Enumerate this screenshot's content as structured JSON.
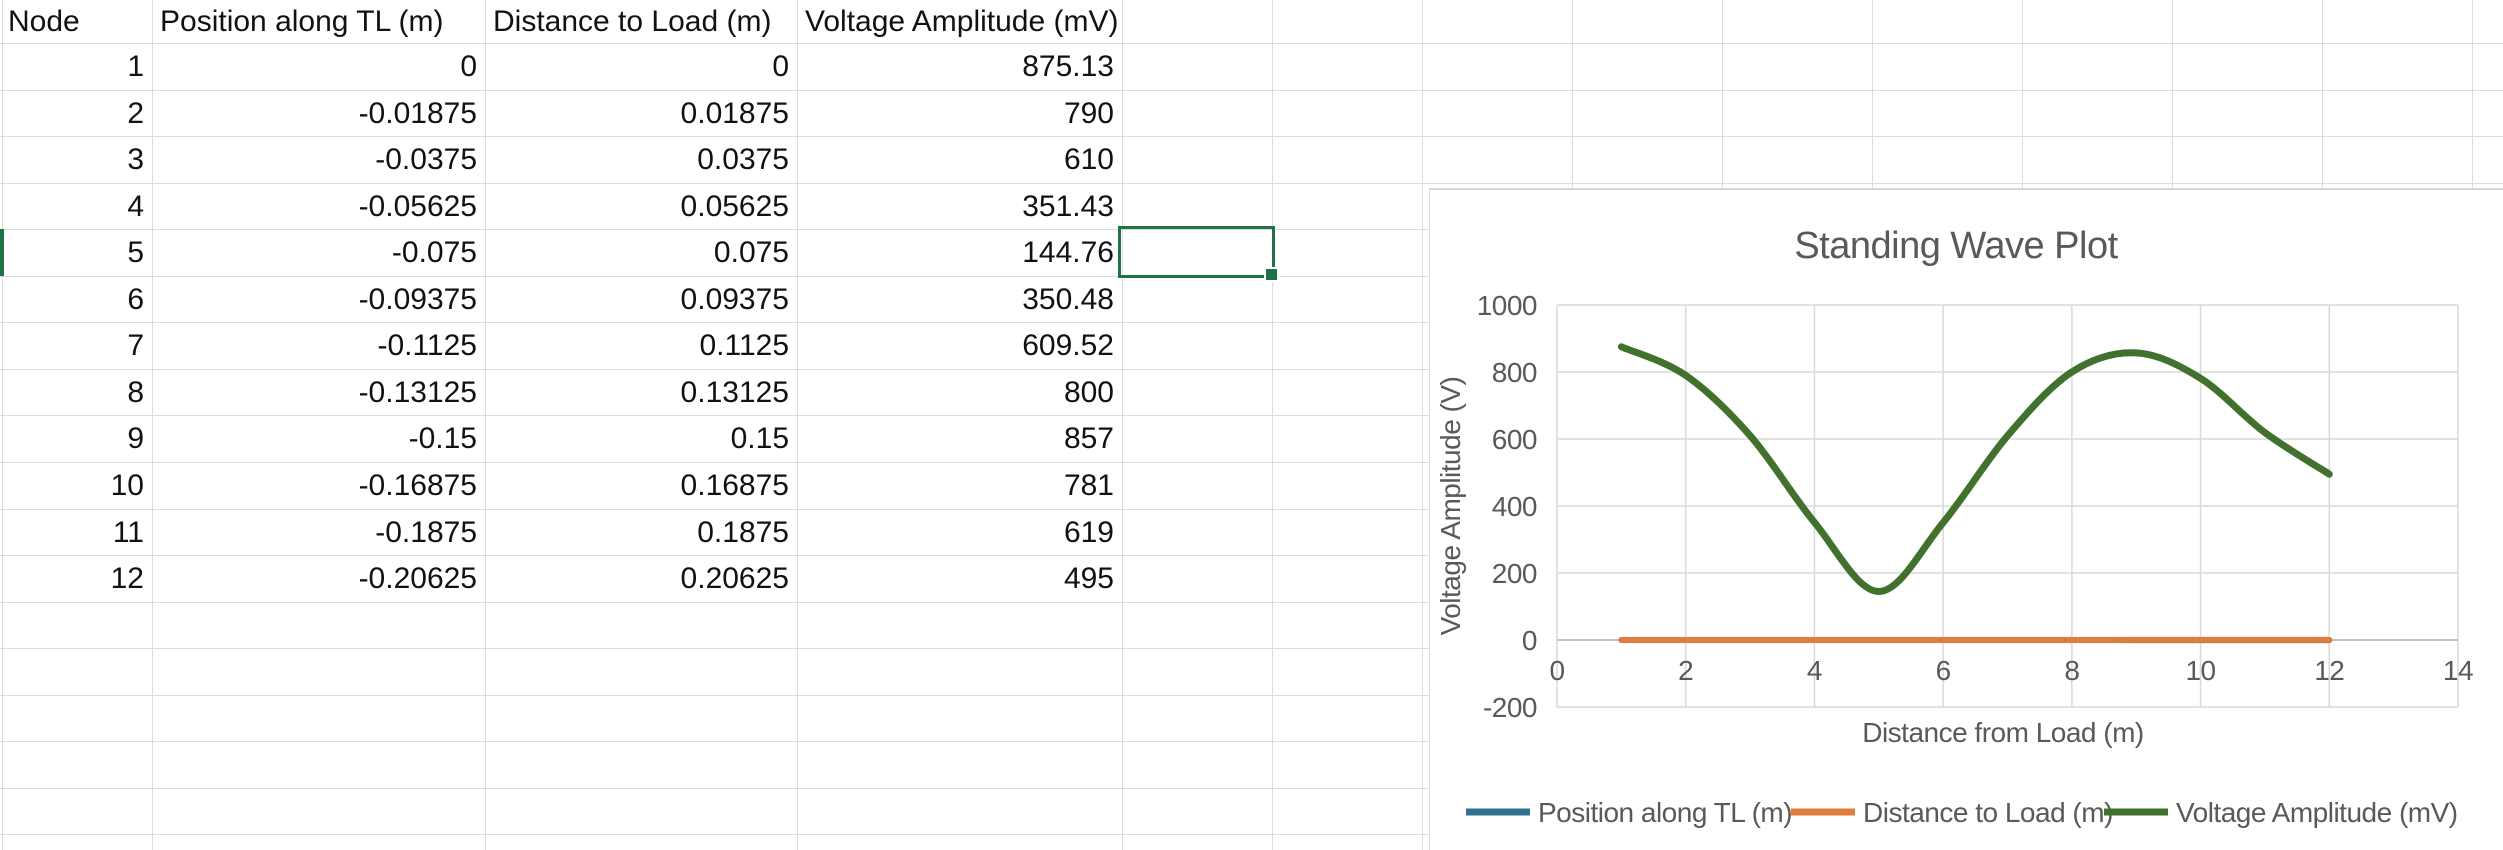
{
  "sheet": {
    "columns": [
      "Node",
      "Position along TL (m)",
      "Distance to Load (m)",
      "Voltage Amplitude (mV)"
    ],
    "rows": [
      [
        "1",
        "0",
        "0",
        "875.13"
      ],
      [
        "2",
        "-0.01875",
        "0.01875",
        "790"
      ],
      [
        "3",
        "-0.0375",
        "0.0375",
        "610"
      ],
      [
        "4",
        "-0.05625",
        "0.05625",
        "351.43"
      ],
      [
        "5",
        "-0.075",
        "0.075",
        "144.76"
      ],
      [
        "6",
        "-0.09375",
        "0.09375",
        "350.48"
      ],
      [
        "7",
        "-0.1125",
        "0.1125",
        "609.52"
      ],
      [
        "8",
        "-0.13125",
        "0.13125",
        "800"
      ],
      [
        "9",
        "-0.15",
        "0.15",
        "857"
      ],
      [
        "10",
        "-0.16875",
        "0.16875",
        "781"
      ],
      [
        "11",
        "-0.1875",
        "0.1875",
        "619"
      ],
      [
        "12",
        "-0.20625",
        "0.20625",
        "495"
      ]
    ]
  },
  "chart_data": {
    "type": "line",
    "title": "Standing Wave Plot",
    "xlabel": "Distance from Load (m)",
    "ylabel": "Voltage Amplitude (V)",
    "x": [
      1,
      2,
      3,
      4,
      5,
      6,
      7,
      8,
      9,
      10,
      11,
      12
    ],
    "series": [
      {
        "name": "Position along TL (m)",
        "color": "#31708e",
        "values": [
          0,
          -0.01875,
          -0.0375,
          -0.05625,
          -0.075,
          -0.09375,
          -0.1125,
          -0.13125,
          -0.15,
          -0.16875,
          -0.1875,
          -0.20625
        ]
      },
      {
        "name": "Distance to Load (m)",
        "color": "#e07c3c",
        "values": [
          0,
          0.01875,
          0.0375,
          0.05625,
          0.075,
          0.09375,
          0.1125,
          0.13125,
          0.15,
          0.16875,
          0.1875,
          0.20625
        ]
      },
      {
        "name": "Voltage Amplitude (mV)",
        "color": "#40722e",
        "values": [
          875.13,
          790,
          610,
          351.43,
          144.76,
          350.48,
          609.52,
          800,
          857,
          781,
          619,
          495
        ]
      }
    ],
    "xlim": [
      0,
      14
    ],
    "ylim": [
      -200,
      1000
    ],
    "xticks": [
      0,
      2,
      4,
      6,
      8,
      10,
      12,
      14
    ],
    "yticks": [
      1000,
      800,
      600,
      400,
      200,
      0,
      -200
    ],
    "grid": true,
    "smooth": true,
    "legend_position": "bottom",
    "text_color": "#595959",
    "grid_color": "#d9d9d9",
    "axis_color": "#c3c3c3"
  }
}
